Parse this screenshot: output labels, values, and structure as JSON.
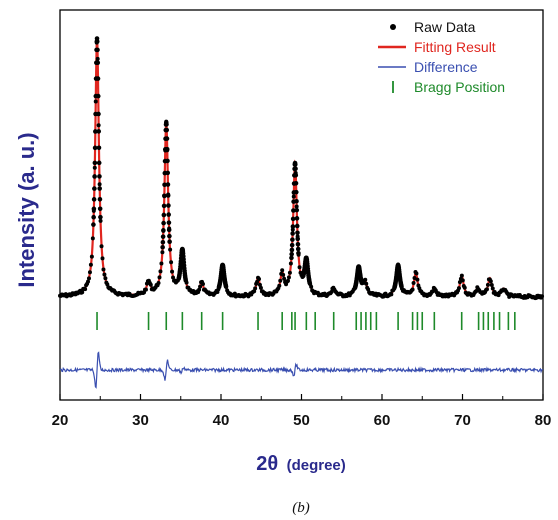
{
  "chart_data": {
    "type": "line",
    "xlabel_main": "2θ",
    "xlabel_unit": "(degree)",
    "ylabel": "Intensity (a. u.)",
    "xlim": [
      20,
      80
    ],
    "x_ticks": [
      "20",
      "30",
      "40",
      "50",
      "60",
      "70",
      "80"
    ],
    "y_ticks": [],
    "grid": false,
    "legend_position": "top-right",
    "legend": [
      {
        "key": "raw",
        "label": "Raw Data",
        "color": "#000000",
        "marker": "dot"
      },
      {
        "key": "fit",
        "label": "Fitting Result",
        "color": "#e0261f",
        "marker": "line"
      },
      {
        "key": "diff",
        "label": "Difference",
        "color": "#3a4fb0",
        "marker": "line"
      },
      {
        "key": "bragg",
        "label": "Bragg Position",
        "color": "#1e8a2a",
        "marker": "bar"
      }
    ],
    "baseline_intensity": 0.02,
    "peaks": [
      {
        "pos": 24.6,
        "height": 1.0
      },
      {
        "pos": 31.0,
        "height": 0.05
      },
      {
        "pos": 33.2,
        "height": 0.67
      },
      {
        "pos": 35.2,
        "height": 0.17
      },
      {
        "pos": 37.6,
        "height": 0.05
      },
      {
        "pos": 40.2,
        "height": 0.12
      },
      {
        "pos": 44.6,
        "height": 0.07
      },
      {
        "pos": 47.6,
        "height": 0.08
      },
      {
        "pos": 49.2,
        "height": 0.51
      },
      {
        "pos": 50.6,
        "height": 0.13
      },
      {
        "pos": 54.0,
        "height": 0.03
      },
      {
        "pos": 57.1,
        "height": 0.11
      },
      {
        "pos": 57.9,
        "height": 0.05
      },
      {
        "pos": 62.0,
        "height": 0.12
      },
      {
        "pos": 64.2,
        "height": 0.09
      },
      {
        "pos": 66.5,
        "height": 0.03
      },
      {
        "pos": 69.9,
        "height": 0.08
      },
      {
        "pos": 71.9,
        "height": 0.03
      },
      {
        "pos": 73.4,
        "height": 0.07
      },
      {
        "pos": 75.1,
        "height": 0.03
      }
    ],
    "bragg_positions": [
      24.6,
      31.0,
      33.2,
      35.2,
      37.6,
      40.2,
      44.6,
      47.6,
      48.8,
      49.2,
      50.6,
      51.7,
      54.0,
      56.8,
      57.4,
      58.0,
      58.6,
      59.3,
      62.0,
      63.8,
      64.4,
      65.0,
      66.5,
      69.9,
      72.0,
      72.6,
      73.2,
      73.9,
      74.6,
      75.7,
      76.5
    ],
    "difference_spikes": [
      {
        "pos": 24.6,
        "amp": 1.0
      },
      {
        "pos": 33.2,
        "amp": 0.55
      },
      {
        "pos": 35.2,
        "amp": 0.15
      },
      {
        "pos": 49.2,
        "amp": 0.3
      }
    ]
  },
  "caption": "(b)"
}
